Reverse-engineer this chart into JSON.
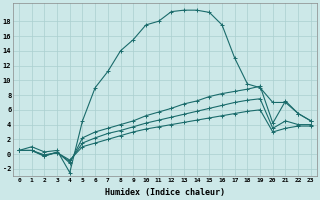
{
  "xlabel": "Humidex (Indice chaleur)",
  "bg_color": "#cce8e8",
  "line_color": "#1a6b6b",
  "grid_color": "#aacfcf",
  "xlim": [
    -0.5,
    23.5
  ],
  "ylim": [
    -3.0,
    20.5
  ],
  "xticks": [
    0,
    1,
    2,
    3,
    4,
    5,
    6,
    7,
    8,
    9,
    10,
    11,
    12,
    13,
    14,
    15,
    16,
    17,
    18,
    19,
    20,
    21,
    22,
    23
  ],
  "yticks": [
    -2,
    0,
    2,
    4,
    6,
    8,
    10,
    12,
    14,
    16,
    18
  ],
  "series1_x": [
    0,
    1,
    2,
    3,
    4,
    5,
    6,
    7,
    8,
    9,
    10,
    11,
    12,
    13,
    14,
    15,
    16,
    17,
    18,
    19,
    20,
    21,
    22,
    23
  ],
  "series1_y": [
    0.5,
    1.0,
    0.3,
    0.5,
    -2.5,
    4.5,
    9.0,
    11.2,
    14.0,
    15.5,
    17.5,
    18.0,
    19.3,
    19.5,
    19.5,
    19.2,
    17.5,
    13.0,
    9.5,
    9.0,
    7.0,
    7.0,
    5.5,
    4.5
  ],
  "series2_x": [
    0,
    1,
    2,
    3,
    4,
    5,
    6,
    7,
    8,
    9,
    10,
    11,
    12,
    13,
    14,
    15,
    16,
    17,
    18,
    19,
    20,
    21,
    22,
    23
  ],
  "series2_y": [
    0.5,
    0.5,
    -0.3,
    0.3,
    -1.2,
    2.2,
    3.0,
    3.5,
    4.0,
    4.5,
    5.2,
    5.7,
    6.2,
    6.8,
    7.2,
    7.8,
    8.2,
    8.5,
    8.8,
    9.2,
    4.2,
    7.2,
    5.5,
    4.5
  ],
  "series3_x": [
    0,
    1,
    2,
    3,
    4,
    5,
    6,
    7,
    8,
    9,
    10,
    11,
    12,
    13,
    14,
    15,
    16,
    17,
    18,
    19,
    20,
    21,
    22,
    23
  ],
  "series3_y": [
    0.5,
    0.5,
    -0.2,
    0.2,
    -1.0,
    1.5,
    2.2,
    2.8,
    3.2,
    3.7,
    4.2,
    4.6,
    5.0,
    5.4,
    5.8,
    6.2,
    6.6,
    7.0,
    7.3,
    7.5,
    3.5,
    4.5,
    4.0,
    4.0
  ],
  "series4_x": [
    0,
    1,
    2,
    3,
    4,
    5,
    6,
    7,
    8,
    9,
    10,
    11,
    12,
    13,
    14,
    15,
    16,
    17,
    18,
    19,
    20,
    21,
    22,
    23
  ],
  "series4_y": [
    0.5,
    0.5,
    -0.1,
    0.2,
    -0.8,
    1.0,
    1.5,
    2.0,
    2.5,
    3.0,
    3.4,
    3.7,
    4.0,
    4.3,
    4.6,
    4.9,
    5.2,
    5.5,
    5.8,
    6.0,
    3.0,
    3.5,
    3.8,
    3.8
  ]
}
